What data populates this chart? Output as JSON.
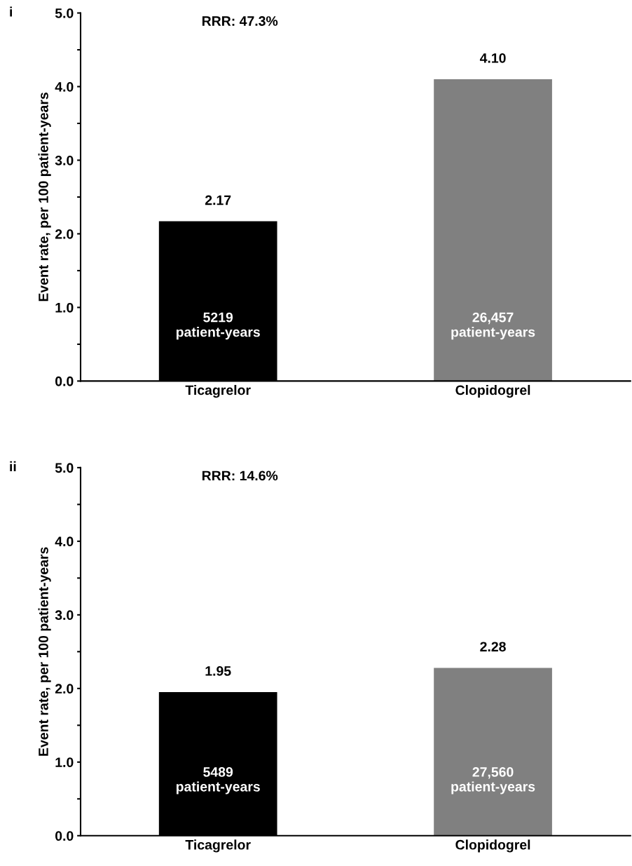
{
  "chart_data": [
    {
      "type": "bar",
      "title": "i",
      "ylabel": "Event rate, per 100 patient-years",
      "categories": [
        "Ticagrelor",
        "Clopidogrel"
      ],
      "values": [
        2.17,
        4.1
      ],
      "colors": [
        "#000000",
        "#808080"
      ],
      "value_labels": [
        "2.17",
        "4.10"
      ],
      "ylim": [
        0,
        5
      ],
      "yticks": [
        {
          "value": 0,
          "label": "0.0"
        },
        {
          "value": 0.5,
          "label": null
        },
        {
          "value": 1,
          "label": "1.0"
        },
        {
          "value": 1.5,
          "label": null
        },
        {
          "value": 2,
          "label": "2.0"
        },
        {
          "value": 2.5,
          "label": null
        },
        {
          "value": 3,
          "label": "3.0"
        },
        {
          "value": 3.5,
          "label": null
        },
        {
          "value": 4,
          "label": "4.0"
        },
        {
          "value": 4.5,
          "label": null
        },
        {
          "value": 5,
          "label": "5.0"
        }
      ],
      "annotations": [
        "RRR: 47.3%",
        "5219\npatient-years",
        "26,457\npatient-years"
      ]
    },
    {
      "type": "bar",
      "title": "ii",
      "ylabel": "Event rate, per 100 patient-years",
      "categories": [
        "Ticagrelor",
        "Clopidogrel"
      ],
      "values": [
        1.95,
        2.28
      ],
      "colors": [
        "#000000",
        "#808080"
      ],
      "value_labels": [
        "1.95",
        "2.28"
      ],
      "ylim": [
        0,
        5
      ],
      "yticks": [
        {
          "value": 0,
          "label": "0.0"
        },
        {
          "value": 0.5,
          "label": null
        },
        {
          "value": 1,
          "label": "1.0"
        },
        {
          "value": 1.5,
          "label": null
        },
        {
          "value": 2,
          "label": "2.0"
        },
        {
          "value": 2.5,
          "label": null
        },
        {
          "value": 3,
          "label": "3.0"
        },
        {
          "value": 3.5,
          "label": null
        },
        {
          "value": 4,
          "label": "4.0"
        },
        {
          "value": 4.5,
          "label": null
        },
        {
          "value": 5,
          "label": "5.0"
        }
      ],
      "annotations": [
        "RRR: 14.6%",
        "5489\npatient-years",
        "27,560\npatient-years"
      ]
    }
  ]
}
